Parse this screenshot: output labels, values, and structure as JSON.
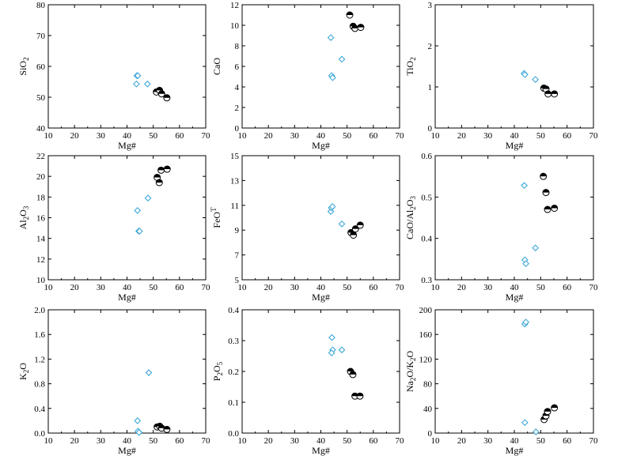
{
  "colors": {
    "diamond": "#3fa8d8",
    "circle": "#000000",
    "axis": "#000000"
  },
  "chart_data": [
    {
      "type": "scatter",
      "ylabel": [
        "SiO",
        {
          "sub": "2"
        }
      ],
      "xlabel": "Mg#",
      "xlim": [
        10,
        70
      ],
      "xticks": [
        10,
        20,
        30,
        40,
        50,
        60,
        70
      ],
      "ylim": [
        40,
        80
      ],
      "yticks": [
        "40",
        "50",
        "60",
        "70",
        "80"
      ],
      "series": [
        {
          "marker": "diamond",
          "points": [
            [
              43.8,
              57
            ],
            [
              44.1,
              57
            ],
            [
              43.6,
              54.3
            ],
            [
              47.8,
              54.3
            ]
          ]
        },
        {
          "marker": "half-circle",
          "points": [
            [
              51.2,
              51.7
            ],
            [
              52.4,
              52.2
            ],
            [
              53.2,
              51.1
            ],
            [
              55.2,
              49.8
            ]
          ]
        }
      ]
    },
    {
      "type": "scatter",
      "ylabel": [
        "CaO"
      ],
      "xlabel": "Mg#",
      "xlim": [
        10,
        70
      ],
      "xticks": [
        10,
        20,
        30,
        40,
        50,
        60,
        70
      ],
      "ylim": [
        0,
        12
      ],
      "yticks": [
        "0",
        "2",
        "4",
        "6",
        "8",
        "10",
        "12"
      ],
      "series": [
        {
          "marker": "diamond",
          "points": [
            [
              43.8,
              8.8
            ],
            [
              44.1,
              5.1
            ],
            [
              44.5,
              4.9
            ],
            [
              48.0,
              6.7
            ]
          ]
        },
        {
          "marker": "half-circle",
          "points": [
            [
              51.0,
              11.0
            ],
            [
              52.3,
              9.9
            ],
            [
              53.0,
              9.7
            ],
            [
              55.2,
              9.8
            ]
          ]
        }
      ]
    },
    {
      "type": "scatter",
      "ylabel": [
        "TiO",
        {
          "sub": "2"
        }
      ],
      "xlabel": "Mg#",
      "xlim": [
        10,
        70
      ],
      "xticks": [
        10,
        20,
        30,
        40,
        50,
        60,
        70
      ],
      "ylim": [
        0,
        3
      ],
      "yticks": [
        "0",
        "1",
        "2",
        "3"
      ],
      "series": [
        {
          "marker": "diamond",
          "points": [
            [
              43.7,
              1.33
            ],
            [
              44.0,
              1.3
            ],
            [
              48.0,
              1.18
            ]
          ]
        },
        {
          "marker": "half-circle",
          "points": [
            [
              51.2,
              0.97
            ],
            [
              52.0,
              0.95
            ],
            [
              52.8,
              0.83
            ],
            [
              55.2,
              0.83
            ]
          ]
        }
      ]
    },
    {
      "type": "scatter",
      "ylabel": [
        "Al",
        {
          "sub": "2"
        },
        "O",
        {
          "sub": "3"
        }
      ],
      "xlabel": "Mg#",
      "xlim": [
        10,
        70
      ],
      "xticks": [
        10,
        20,
        30,
        40,
        50,
        60,
        70
      ],
      "ylim": [
        10,
        22
      ],
      "yticks": [
        "10",
        "12",
        "14",
        "16",
        "18",
        "20",
        "22"
      ],
      "series": [
        {
          "marker": "diamond",
          "points": [
            [
              44.0,
              16.7
            ],
            [
              44.5,
              14.7
            ],
            [
              44.8,
              14.7
            ],
            [
              48.0,
              17.9
            ]
          ]
        },
        {
          "marker": "half-circle",
          "points": [
            [
              51.5,
              19.9
            ],
            [
              52.3,
              19.4
            ],
            [
              53.0,
              20.6
            ],
            [
              55.3,
              20.7
            ]
          ]
        }
      ]
    },
    {
      "type": "scatter",
      "ylabel": [
        "FeO",
        {
          "sup": "T"
        }
      ],
      "xlabel": "Mg#",
      "xlim": [
        10,
        70
      ],
      "xticks": [
        10,
        20,
        30,
        40,
        50,
        60,
        70
      ],
      "ylim": [
        5,
        15
      ],
      "yticks": [
        "5",
        "7",
        "9",
        "11",
        "13",
        "15"
      ],
      "series": [
        {
          "marker": "diamond",
          "points": [
            [
              43.8,
              10.5
            ],
            [
              44.0,
              10.8
            ],
            [
              44.4,
              10.9
            ],
            [
              48.0,
              9.5
            ]
          ]
        },
        {
          "marker": "half-circle",
          "points": [
            [
              51.5,
              8.8
            ],
            [
              52.4,
              8.6
            ],
            [
              53.2,
              9.1
            ],
            [
              55.0,
              9.4
            ]
          ]
        }
      ]
    },
    {
      "type": "scatter",
      "ylabel": [
        "CaO/Al",
        {
          "sub": "2"
        },
        "O",
        {
          "sub": "3"
        }
      ],
      "xlabel": "Mg#",
      "xlim": [
        10,
        70
      ],
      "xticks": [
        10,
        20,
        30,
        40,
        50,
        60,
        70
      ],
      "ylim": [
        0.3,
        0.6
      ],
      "yticks": [
        "0.3",
        "0.4",
        "0.5",
        "0.6"
      ],
      "series": [
        {
          "marker": "diamond",
          "points": [
            [
              43.8,
              0.528
            ],
            [
              44.0,
              0.348
            ],
            [
              44.4,
              0.339
            ],
            [
              48.0,
              0.377
            ]
          ]
        },
        {
          "marker": "half-circle",
          "points": [
            [
              51.0,
              0.55
            ],
            [
              52.0,
              0.511
            ],
            [
              52.6,
              0.47
            ],
            [
              55.2,
              0.473
            ]
          ]
        }
      ]
    },
    {
      "type": "scatter",
      "ylabel": [
        "K",
        {
          "sub": "2"
        },
        "O"
      ],
      "xlabel": "Mg#",
      "xlim": [
        10,
        70
      ],
      "xticks": [
        10,
        20,
        30,
        40,
        50,
        60,
        70
      ],
      "ylim": [
        0,
        2.0
      ],
      "yticks": [
        "0.0",
        "0.4",
        "0.8",
        "1.2",
        "1.6",
        "2.0"
      ],
      "series": [
        {
          "marker": "diamond",
          "points": [
            [
              44.0,
              0.2
            ],
            [
              44.2,
              0.03
            ],
            [
              44.6,
              0.01
            ],
            [
              48.3,
              0.98
            ]
          ]
        },
        {
          "marker": "half-circle",
          "points": [
            [
              51.5,
              0.1
            ],
            [
              52.5,
              0.11
            ],
            [
              53.2,
              0.08
            ],
            [
              55.2,
              0.06
            ]
          ]
        }
      ]
    },
    {
      "type": "scatter",
      "ylabel": [
        "P",
        {
          "sub": "2"
        },
        "O",
        {
          "sub": "5"
        }
      ],
      "xlabel": "Mg#",
      "xlim": [
        10,
        70
      ],
      "xticks": [
        10,
        20,
        30,
        40,
        50,
        60,
        70
      ],
      "ylim": [
        0,
        0.4
      ],
      "yticks": [
        "0.0",
        "0.1",
        "0.2",
        "0.3",
        "0.4"
      ],
      "series": [
        {
          "marker": "diamond",
          "points": [
            [
              44.2,
              0.31
            ],
            [
              44.5,
              0.27
            ],
            [
              44.1,
              0.26
            ],
            [
              48.0,
              0.27
            ]
          ]
        },
        {
          "marker": "half-circle",
          "points": [
            [
              51.3,
              0.2
            ],
            [
              52.2,
              0.19
            ],
            [
              53.0,
              0.12
            ],
            [
              54.9,
              0.12
            ]
          ]
        }
      ]
    },
    {
      "type": "scatter",
      "ylabel": [
        "Na",
        {
          "sub": "2"
        },
        "O/K",
        {
          "sub": "2"
        },
        "O"
      ],
      "xlabel": "Mg#",
      "xlim": [
        10,
        70
      ],
      "xticks": [
        10,
        20,
        30,
        40,
        50,
        60,
        70
      ],
      "ylim": [
        0,
        200
      ],
      "yticks": [
        "0",
        "40",
        "80",
        "120",
        "160",
        "200"
      ],
      "series": [
        {
          "marker": "diamond",
          "points": [
            [
              44.0,
              177
            ],
            [
              44.4,
              180
            ],
            [
              44.0,
              17
            ],
            [
              48.2,
              2
            ]
          ]
        },
        {
          "marker": "half-circle",
          "points": [
            [
              51.3,
              22
            ],
            [
              52.0,
              28
            ],
            [
              52.6,
              35
            ],
            [
              55.2,
              41
            ]
          ]
        }
      ]
    }
  ]
}
